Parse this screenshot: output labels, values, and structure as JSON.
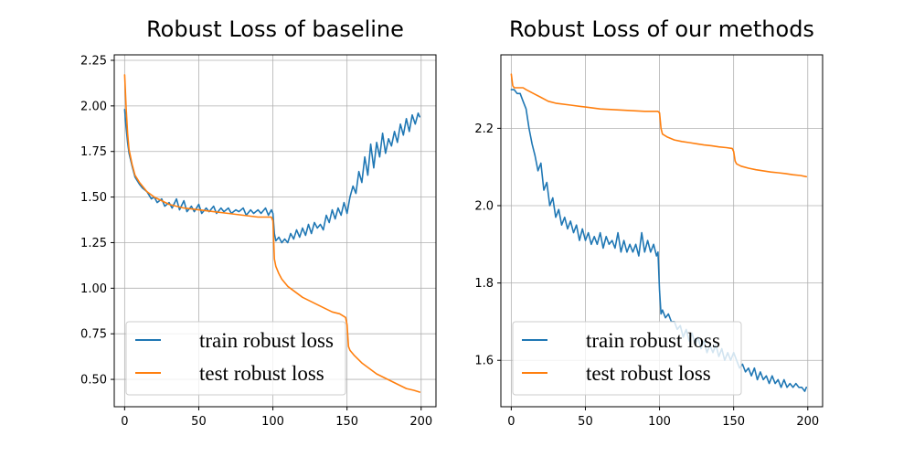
{
  "chart_data": [
    {
      "type": "line",
      "title": "Robust Loss of baseline",
      "xlabel": "",
      "ylabel": "",
      "xlim": [
        -7,
        210
      ],
      "ylim": [
        0.35,
        2.28
      ],
      "xticks": [
        0,
        50,
        100,
        150,
        200
      ],
      "yticks": [
        0.5,
        0.75,
        1.0,
        1.25,
        1.5,
        1.75,
        2.0,
        2.25
      ],
      "ytick_labels": [
        "0.50",
        "0.75",
        "1.00",
        "1.25",
        "1.50",
        "1.75",
        "2.00",
        "2.25"
      ],
      "grid": true,
      "legend": "lower-left",
      "series": [
        {
          "name": "train robust loss",
          "color": "#1f77b4",
          "x": [
            0,
            1,
            2,
            3,
            5,
            7,
            10,
            12,
            15,
            18,
            20,
            22,
            25,
            27,
            30,
            32,
            35,
            37,
            40,
            42,
            45,
            47,
            50,
            52,
            55,
            57,
            60,
            62,
            65,
            67,
            70,
            72,
            75,
            77,
            80,
            82,
            85,
            87,
            90,
            92,
            95,
            97,
            99,
            100,
            101,
            102,
            104,
            106,
            108,
            110,
            112,
            114,
            116,
            118,
            120,
            122,
            124,
            126,
            128,
            130,
            132,
            134,
            136,
            138,
            140,
            142,
            144,
            146,
            148,
            150,
            152,
            154,
            156,
            158,
            160,
            162,
            164,
            166,
            168,
            170,
            172,
            174,
            176,
            178,
            180,
            182,
            184,
            186,
            188,
            190,
            192,
            194,
            196,
            198,
            199
          ],
          "y": [
            1.98,
            1.88,
            1.8,
            1.74,
            1.67,
            1.61,
            1.57,
            1.55,
            1.53,
            1.49,
            1.5,
            1.47,
            1.49,
            1.45,
            1.47,
            1.44,
            1.49,
            1.43,
            1.48,
            1.42,
            1.45,
            1.42,
            1.46,
            1.41,
            1.44,
            1.42,
            1.45,
            1.41,
            1.44,
            1.42,
            1.44,
            1.41,
            1.43,
            1.42,
            1.44,
            1.4,
            1.43,
            1.41,
            1.43,
            1.41,
            1.44,
            1.4,
            1.43,
            1.41,
            1.3,
            1.26,
            1.28,
            1.25,
            1.27,
            1.25,
            1.3,
            1.27,
            1.32,
            1.28,
            1.33,
            1.29,
            1.35,
            1.3,
            1.36,
            1.33,
            1.35,
            1.32,
            1.4,
            1.36,
            1.43,
            1.38,
            1.44,
            1.4,
            1.47,
            1.41,
            1.5,
            1.56,
            1.52,
            1.64,
            1.58,
            1.72,
            1.62,
            1.79,
            1.66,
            1.8,
            1.72,
            1.85,
            1.74,
            1.82,
            1.78,
            1.86,
            1.8,
            1.9,
            1.84,
            1.93,
            1.86,
            1.95,
            1.9,
            1.96,
            1.94
          ]
        },
        {
          "name": "test robust loss",
          "color": "#ff7f0e",
          "x": [
            0,
            1,
            2,
            3,
            5,
            7,
            10,
            15,
            20,
            25,
            30,
            40,
            50,
            60,
            70,
            80,
            90,
            99,
            100,
            101,
            102,
            104,
            106,
            110,
            115,
            120,
            125,
            130,
            135,
            140,
            145,
            149,
            150,
            151,
            152,
            155,
            160,
            165,
            170,
            175,
            180,
            185,
            190,
            195,
            199
          ],
          "y": [
            2.17,
            1.99,
            1.85,
            1.76,
            1.68,
            1.62,
            1.58,
            1.53,
            1.5,
            1.48,
            1.46,
            1.44,
            1.43,
            1.42,
            1.41,
            1.4,
            1.39,
            1.39,
            1.37,
            1.16,
            1.12,
            1.08,
            1.05,
            1.01,
            0.98,
            0.95,
            0.93,
            0.91,
            0.89,
            0.87,
            0.86,
            0.84,
            0.8,
            0.68,
            0.66,
            0.63,
            0.59,
            0.56,
            0.53,
            0.51,
            0.49,
            0.47,
            0.45,
            0.44,
            0.43
          ]
        }
      ]
    },
    {
      "type": "line",
      "title": "Robust Loss of our methods",
      "xlabel": "",
      "ylabel": "",
      "xlim": [
        -7,
        210
      ],
      "ylim": [
        1.48,
        2.39
      ],
      "xticks": [
        0,
        50,
        100,
        150,
        200
      ],
      "yticks": [
        1.6,
        1.8,
        2.0,
        2.2
      ],
      "ytick_labels": [
        "1.6",
        "1.8",
        "2.0",
        "2.2"
      ],
      "grid": true,
      "legend": "lower-left",
      "series": [
        {
          "name": "train robust loss",
          "color": "#1f77b4",
          "x": [
            0,
            2,
            4,
            6,
            8,
            10,
            12,
            14,
            16,
            18,
            20,
            22,
            24,
            26,
            28,
            30,
            32,
            34,
            36,
            38,
            40,
            42,
            44,
            46,
            48,
            50,
            52,
            54,
            56,
            58,
            60,
            62,
            64,
            66,
            68,
            70,
            72,
            74,
            76,
            78,
            80,
            82,
            84,
            86,
            88,
            90,
            92,
            94,
            96,
            98,
            99,
            100,
            101,
            102,
            104,
            106,
            108,
            110,
            112,
            114,
            116,
            118,
            120,
            122,
            124,
            126,
            128,
            130,
            132,
            134,
            136,
            138,
            140,
            142,
            144,
            146,
            148,
            150,
            152,
            154,
            156,
            158,
            160,
            162,
            164,
            166,
            168,
            170,
            172,
            174,
            176,
            178,
            180,
            182,
            184,
            186,
            188,
            190,
            192,
            194,
            196,
            198,
            199
          ],
          "y": [
            2.3,
            2.3,
            2.29,
            2.29,
            2.27,
            2.25,
            2.2,
            2.16,
            2.13,
            2.09,
            2.11,
            2.04,
            2.06,
            2.0,
            2.02,
            1.97,
            1.99,
            1.95,
            1.97,
            1.94,
            1.96,
            1.93,
            1.95,
            1.91,
            1.94,
            1.91,
            1.93,
            1.9,
            1.92,
            1.9,
            1.93,
            1.89,
            1.92,
            1.9,
            1.91,
            1.89,
            1.93,
            1.88,
            1.91,
            1.88,
            1.9,
            1.88,
            1.9,
            1.87,
            1.93,
            1.88,
            1.91,
            1.88,
            1.9,
            1.87,
            1.88,
            1.78,
            1.72,
            1.73,
            1.71,
            1.72,
            1.7,
            1.7,
            1.68,
            1.69,
            1.66,
            1.68,
            1.65,
            1.67,
            1.64,
            1.66,
            1.63,
            1.65,
            1.62,
            1.64,
            1.62,
            1.64,
            1.61,
            1.63,
            1.6,
            1.62,
            1.6,
            1.62,
            1.6,
            1.58,
            1.59,
            1.57,
            1.58,
            1.56,
            1.58,
            1.55,
            1.57,
            1.55,
            1.56,
            1.54,
            1.56,
            1.54,
            1.55,
            1.53,
            1.55,
            1.53,
            1.54,
            1.53,
            1.54,
            1.53,
            1.53,
            1.52,
            1.53
          ]
        },
        {
          "name": "test robust loss",
          "color": "#ff7f0e",
          "x": [
            0,
            1,
            2,
            5,
            8,
            10,
            15,
            20,
            25,
            30,
            40,
            50,
            60,
            70,
            80,
            90,
            99,
            100,
            101,
            102,
            105,
            110,
            115,
            120,
            125,
            130,
            135,
            140,
            145,
            149,
            150,
            151,
            152,
            155,
            160,
            165,
            170,
            175,
            180,
            185,
            190,
            195,
            199
          ],
          "y": [
            2.34,
            2.31,
            2.305,
            2.305,
            2.305,
            2.3,
            2.29,
            2.28,
            2.27,
            2.265,
            2.26,
            2.255,
            2.25,
            2.248,
            2.246,
            2.244,
            2.244,
            2.24,
            2.2,
            2.185,
            2.178,
            2.17,
            2.166,
            2.163,
            2.16,
            2.157,
            2.155,
            2.152,
            2.15,
            2.148,
            2.14,
            2.115,
            2.108,
            2.102,
            2.097,
            2.093,
            2.09,
            2.087,
            2.085,
            2.083,
            2.08,
            2.078,
            2.075
          ]
        }
      ]
    }
  ]
}
